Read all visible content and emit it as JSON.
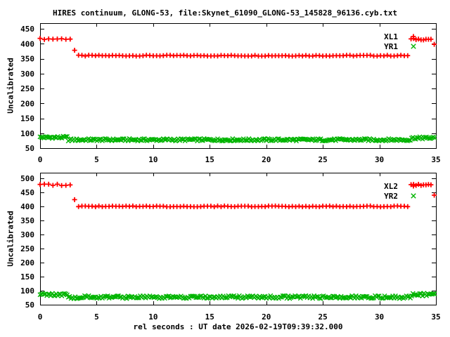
{
  "figure": {
    "title": "HIRES continuum, GLONG-53, file:Skynet_61090_GLONG-53_145828_96136.cyb.txt",
    "x_axis_title": "rel seconds : UT date 2026-02-19T09:39:32.000",
    "background": "#ffffff",
    "frame_color": "#000000",
    "red_color": "#ff0000",
    "green_color": "#00b400"
  },
  "chart_data": [
    {
      "type": "scatter",
      "title": "",
      "ylabel": "Uncalibrated",
      "xlabel": "",
      "xlim": [
        0,
        35
      ],
      "ylim": [
        50,
        450
      ],
      "xticks": [
        0,
        5,
        10,
        15,
        20,
        25,
        30,
        35
      ],
      "yticks": [
        50,
        100,
        150,
        200,
        250,
        300,
        350,
        400,
        450
      ],
      "grid": false,
      "legend_position": "top-right-inside",
      "legend": [
        {
          "label": "XL1",
          "marker": "plus",
          "color": "#ff0000"
        },
        {
          "label": "YR1",
          "marker": "cross",
          "color": "#00b400"
        }
      ],
      "series": [
        {
          "name": "XL1",
          "marker": "plus",
          "color": "#ff0000",
          "segments": [
            {
              "x0": 0.0,
              "x1": 2.7,
              "step": 0.38,
              "y": 416,
              "jitter": 2
            },
            {
              "x0": 3.05,
              "x1": 3.05,
              "step": 1,
              "y": 378,
              "jitter": 0
            },
            {
              "x0": 3.4,
              "x1": 32.6,
              "step": 0.3,
              "y": 360,
              "jitter": 1.5
            },
            {
              "x0": 32.8,
              "x1": 34.6,
              "step": 0.22,
              "y": 415,
              "jitter": 2.5
            },
            {
              "x0": 34.85,
              "x1": 34.85,
              "step": 1,
              "y": 398,
              "jitter": 0
            }
          ]
        },
        {
          "name": "YR1",
          "marker": "cross",
          "color": "#00b400",
          "segments": [
            {
              "x0": 0.0,
              "x1": 2.4,
              "step": 0.12,
              "y": 86,
              "jitter": 4
            },
            {
              "x0": 2.5,
              "x1": 32.75,
              "step": 0.12,
              "y": 78,
              "jitter": 4
            },
            {
              "x0": 32.85,
              "x1": 34.95,
              "step": 0.12,
              "y": 84,
              "jitter": 4
            }
          ]
        }
      ]
    },
    {
      "type": "scatter",
      "title": "",
      "ylabel": "Uncalibrated",
      "xlabel": "rel seconds : UT date 2026-02-19T09:39:32.000",
      "xlim": [
        0,
        35
      ],
      "ylim": [
        50,
        500
      ],
      "xticks": [
        0,
        5,
        10,
        15,
        20,
        25,
        30,
        35
      ],
      "yticks": [
        50,
        100,
        150,
        200,
        250,
        300,
        350,
        400,
        450,
        500
      ],
      "grid": false,
      "legend_position": "top-right-inside",
      "legend": [
        {
          "label": "XL2",
          "marker": "plus",
          "color": "#ff0000"
        },
        {
          "label": "YR2",
          "marker": "cross",
          "color": "#00b400"
        }
      ],
      "series": [
        {
          "name": "XL2",
          "marker": "plus",
          "color": "#ff0000",
          "segments": [
            {
              "x0": 0.0,
              "x1": 2.7,
              "step": 0.38,
              "y": 477,
              "jitter": 2.5
            },
            {
              "x0": 3.05,
              "x1": 3.05,
              "step": 1,
              "y": 424,
              "jitter": 0
            },
            {
              "x0": 3.4,
              "x1": 32.6,
              "step": 0.3,
              "y": 400,
              "jitter": 1.5
            },
            {
              "x0": 32.8,
              "x1": 34.6,
              "step": 0.22,
              "y": 476,
              "jitter": 3
            },
            {
              "x0": 34.85,
              "x1": 34.85,
              "step": 1,
              "y": 440,
              "jitter": 0
            }
          ]
        },
        {
          "name": "YR2",
          "marker": "cross",
          "color": "#00b400",
          "segments": [
            {
              "x0": 0.0,
              "x1": 2.4,
              "step": 0.12,
              "y": 86,
              "jitter": 5
            },
            {
              "x0": 2.5,
              "x1": 32.75,
              "step": 0.12,
              "y": 77,
              "jitter": 5
            },
            {
              "x0": 32.85,
              "x1": 34.95,
              "step": 0.12,
              "y": 86,
              "jitter": 5
            }
          ]
        }
      ]
    }
  ]
}
